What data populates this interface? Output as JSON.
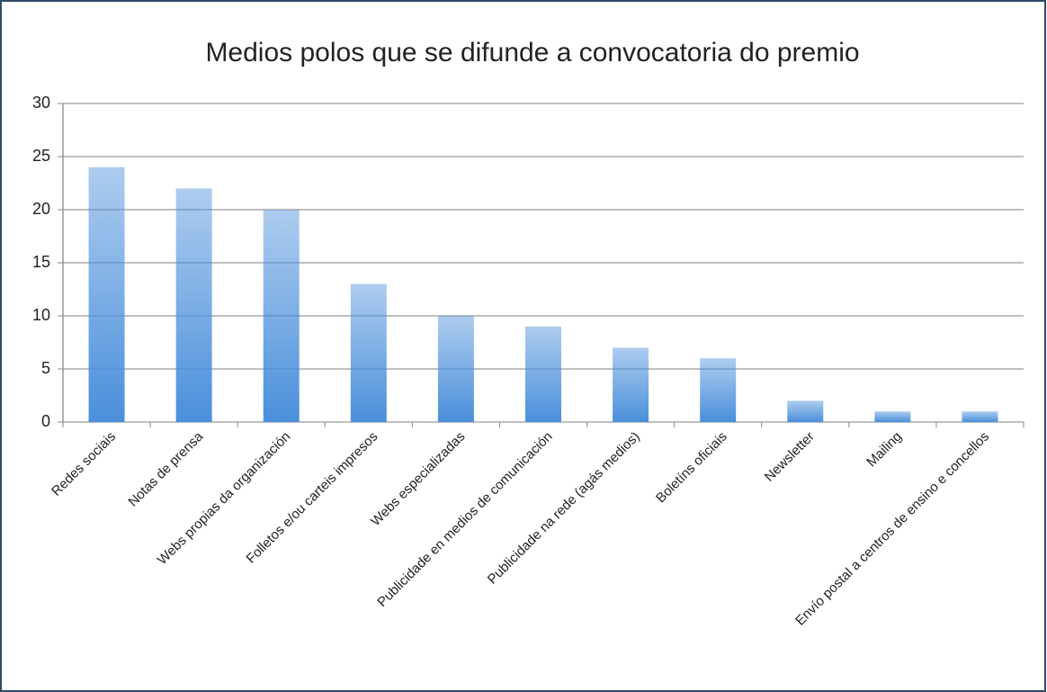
{
  "chart_data": {
    "type": "bar",
    "title": "Medios polos que se difunde a convocatoria do premio",
    "categories": [
      "Redes sociais",
      "Notas de prensa",
      "Webs propias da organización",
      "Folletos e/ou carteis impresos",
      "Webs especializadas",
      "Publicidade en medios de comunicación",
      "Publicidade na rede (agás medios)",
      "Boletíns oficiais",
      "Newsletter",
      "Mailing",
      "Envío postal a centros de ensino e concellos"
    ],
    "values": [
      24,
      22,
      20,
      13,
      10,
      9,
      7,
      6,
      2,
      1,
      1
    ],
    "color": "#4a8fdb",
    "ylim": [
      0,
      30
    ],
    "yticks": [
      0,
      5,
      10,
      15,
      20,
      25,
      30
    ],
    "grid": true
  }
}
